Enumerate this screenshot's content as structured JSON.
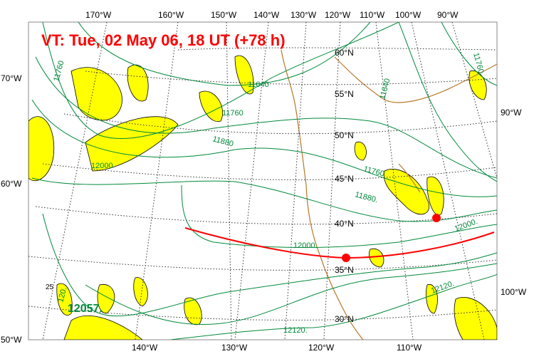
{
  "title": "VT:  Tue, 02 May 06, 18 UT (+78 h)",
  "colors": {
    "title": "#ff0000",
    "height_contours": "#008a3a",
    "precip_fill": "#ffff00",
    "precip_outline": "#000000",
    "coastline": "#b8782a",
    "trajectory": "#ff0000",
    "graticule": "#333333"
  },
  "lon_labels_top": [
    "170°W",
    "160°W",
    "150°W",
    "140°W",
    "130°W",
    "120°W",
    "110°W",
    "100°W",
    "90°W"
  ],
  "lon_labels_bottom": [
    "140°W",
    "130°W",
    "120°W",
    "110°W"
  ],
  "lon_labels_left": [
    "70°W",
    "60°W",
    "50°W"
  ],
  "lon_labels_right": [
    "90°W",
    "100°W"
  ],
  "lat_labels": [
    "60°N",
    "55°N",
    "50°N",
    "45°N",
    "40°N",
    "35°N",
    "30°N"
  ],
  "contour_labels": [
    "11760",
    "11640",
    "11760",
    "11880",
    "12000",
    "11640",
    "11760",
    "11760",
    "11880.",
    "12000.",
    "12000.",
    "12120.",
    "12120.",
    "12057.",
    "120.",
    "25"
  ],
  "markers": [
    {
      "type": "dot",
      "label": ""
    },
    {
      "type": "dot",
      "label": ""
    }
  ]
}
